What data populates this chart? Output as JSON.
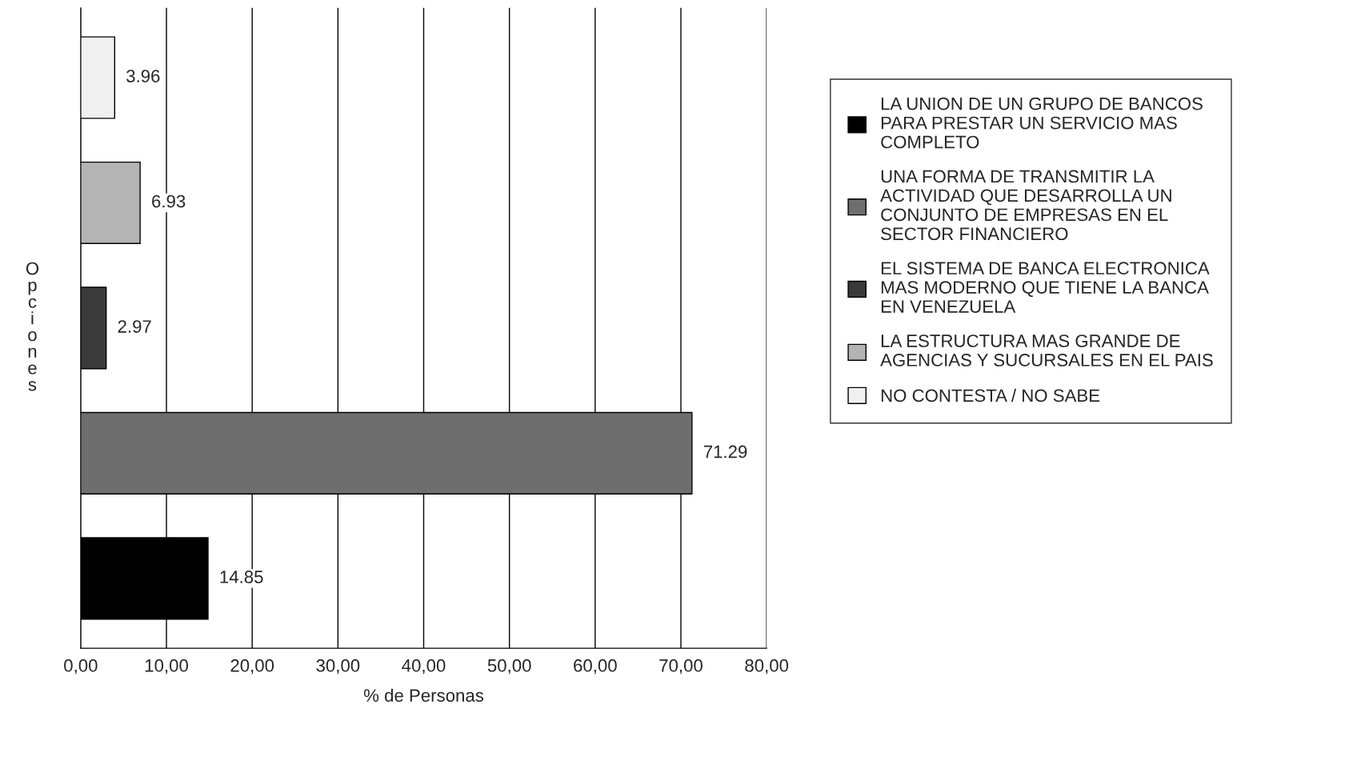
{
  "chart_data": {
    "type": "bar",
    "orientation": "horizontal",
    "xlabel": "% de Personas",
    "ylabel": "Opciones",
    "categories": [
      null,
      null,
      null,
      null,
      null
    ],
    "series": [
      {
        "name": "LA UNION DE UN GRUPO DE BANCOS\nPARA PRESTAR UN SERVICIO MAS\nCOMPLETO",
        "color": "#000000",
        "values": [
          null,
          null,
          null,
          null,
          14.85
        ]
      },
      {
        "name": "UNA FORMA DE TRANSMITIR LA\nACTIVIDAD QUE DESARROLLA UN\nCONJUNTO DE EMPRESAS EN EL\nSECTOR FINANCIERO",
        "color": "#6e6e6e",
        "values": [
          null,
          null,
          null,
          71.29,
          null
        ]
      },
      {
        "name": "EL SISTEMA DE BANCA ELECTRONICA\nMAS MODERNO QUE TIENE LA BANCA\nEN VENEZUELA",
        "color": "#3a3a3a",
        "values": [
          null,
          null,
          2.97,
          null,
          null
        ]
      },
      {
        "name": "LA ESTRUCTURA MAS GRANDE DE\nAGENCIAS Y SUCURSALES EN EL PAIS",
        "color": "#b4b4b4",
        "values": [
          null,
          6.93,
          null,
          null,
          null
        ]
      },
      {
        "name": "NO CONTESTA / NO SABE",
        "color": "#f0f0f0",
        "values": [
          3.96,
          null,
          null,
          null,
          null
        ]
      }
    ],
    "xlim": [
      0,
      80
    ],
    "xticks": [
      {
        "value": 0,
        "label": "0,00"
      },
      {
        "value": 10,
        "label": "10,00"
      },
      {
        "value": 20,
        "label": "20,00"
      },
      {
        "value": 30,
        "label": "30,00"
      },
      {
        "value": 40,
        "label": "40,00"
      },
      {
        "value": 50,
        "label": "50,00"
      },
      {
        "value": 60,
        "label": "60,00"
      },
      {
        "value": 70,
        "label": "70,00"
      },
      {
        "value": 80,
        "label": "80,00"
      }
    ],
    "grid": "x",
    "legend": "right",
    "data_labels": true
  }
}
